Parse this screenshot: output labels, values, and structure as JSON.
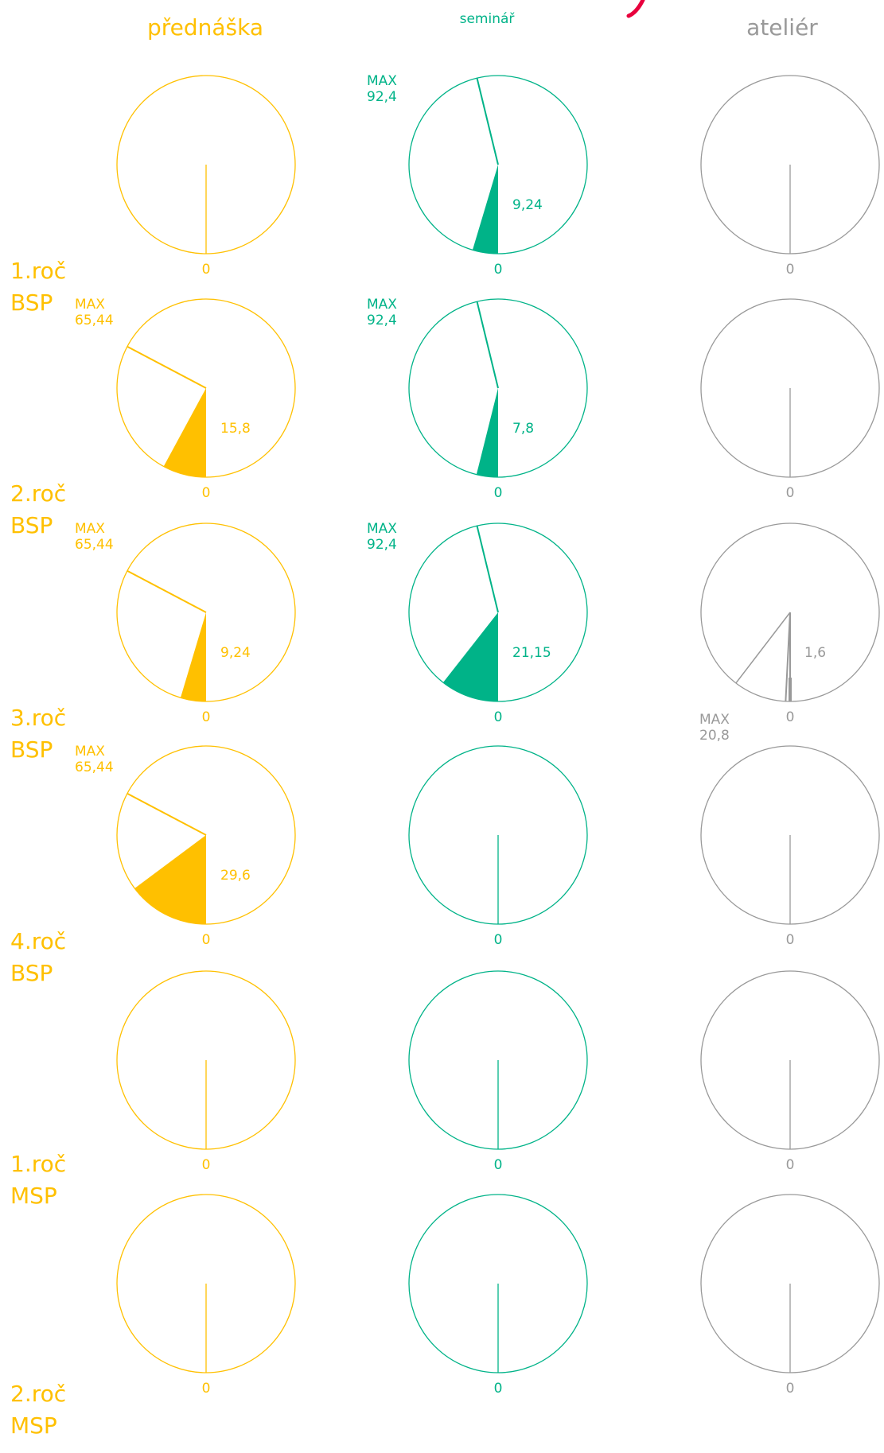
{
  "colors": {
    "lecture": "#FFC000",
    "seminar": "#00B388",
    "studio": "#999999",
    "accent": "#E8003D"
  },
  "headers": {
    "lecture": "přednáška",
    "seminar": "seminář",
    "studio": "ateliér"
  },
  "row_labels": [
    [
      "1.roč",
      "BSP"
    ],
    [
      "2.roč",
      "BSP"
    ],
    [
      "3.roč",
      "BSP"
    ],
    [
      "4.roč",
      "BSP"
    ],
    [
      "1.roč",
      "MSP"
    ],
    [
      "2.roč",
      "MSP"
    ]
  ],
  "chart_data": {
    "type": "pie",
    "full_circle_value": 200,
    "columns": [
      "lecture",
      "seminar",
      "studio"
    ],
    "zero_label": "0",
    "max_prefix": "MAX",
    "cells": [
      [
        {
          "value": 0,
          "value_label": "",
          "max": null,
          "max_label": ""
        },
        {
          "value": 9.24,
          "value_label": "9,24",
          "max": 92.4,
          "max_label": "92,4"
        },
        {
          "value": 0,
          "value_label": "",
          "max": null,
          "max_label": ""
        }
      ],
      [
        {
          "value": 15.8,
          "value_label": "15,8",
          "max": 65.44,
          "max_label": "65,44"
        },
        {
          "value": 7.8,
          "value_label": "7,8",
          "max": 92.4,
          "max_label": "92,4"
        },
        {
          "value": 0,
          "value_label": "",
          "max": null,
          "max_label": ""
        }
      ],
      [
        {
          "value": 9.24,
          "value_label": "9,24",
          "max": 65.44,
          "max_label": "65,44"
        },
        {
          "value": 21.15,
          "value_label": "21,15",
          "max": 92.4,
          "max_label": "92,4"
        },
        {
          "value": 1.6,
          "value_label": "1,6",
          "max": 20.8,
          "max_label": "20,8"
        }
      ],
      [
        {
          "value": 29.6,
          "value_label": "29,6",
          "max": 65.44,
          "max_label": "65,44"
        },
        {
          "value": 0,
          "value_label": "",
          "max": null,
          "max_label": ""
        },
        {
          "value": 0,
          "value_label": "",
          "max": null,
          "max_label": ""
        }
      ],
      [
        {
          "value": 0,
          "value_label": "",
          "max": null,
          "max_label": ""
        },
        {
          "value": 0,
          "value_label": "",
          "max": null,
          "max_label": ""
        },
        {
          "value": 0,
          "value_label": "",
          "max": null,
          "max_label": ""
        }
      ],
      [
        {
          "value": 0,
          "value_label": "",
          "max": null,
          "max_label": ""
        },
        {
          "value": 0,
          "value_label": "",
          "max": null,
          "max_label": ""
        },
        {
          "value": 0,
          "value_label": "",
          "max": null,
          "max_label": ""
        }
      ]
    ]
  }
}
